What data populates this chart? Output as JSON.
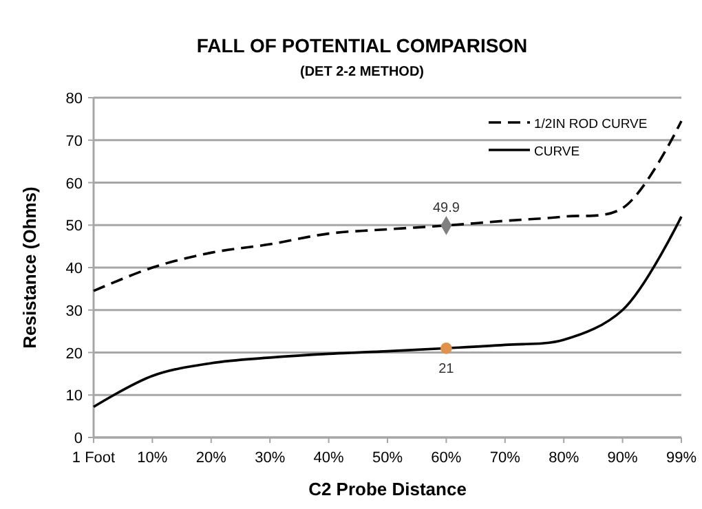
{
  "chart_data": {
    "type": "line",
    "title": "FALL OF POTENTIAL COMPARISON",
    "subtitle": "(DET 2-2 METHOD)",
    "xlabel": "C2 Probe Distance",
    "ylabel": "Resistance (Ohms)",
    "categories": [
      "1 Foot",
      "10%",
      "20%",
      "30%",
      "40%",
      "50%",
      "60%",
      "70%",
      "80%",
      "90%",
      "99%"
    ],
    "series": [
      {
        "name": "1/2IN ROD CURVE",
        "color": "#000000",
        "line_style": "dashed",
        "values": [
          34.5,
          40,
          43.5,
          45.5,
          48,
          49,
          49.9,
          51,
          52,
          54,
          74.5
        ]
      },
      {
        "name": "CURVE",
        "color": "#000000",
        "line_style": "solid",
        "values": [
          7.2,
          14.5,
          17.5,
          18.8,
          19.7,
          20.3,
          21,
          21.8,
          23,
          30,
          52
        ]
      },
      {
        "type": "scatter",
        "color": "#808080",
        "marker": "diamond",
        "x": [
          "60%"
        ],
        "values": [
          49.9
        ],
        "value_labels": [
          "49.9"
        ]
      },
      {
        "type": "scatter",
        "color": "#e0924a",
        "marker": "circle",
        "x": [
          "60%"
        ],
        "values": [
          21
        ],
        "value_labels": [
          "21"
        ]
      }
    ],
    "ylim": [
      0,
      80
    ],
    "yticks": [
      0,
      10,
      20,
      30,
      40,
      50,
      60,
      70,
      80
    ],
    "grid": "y",
    "legend": "top right",
    "marker": "none"
  }
}
